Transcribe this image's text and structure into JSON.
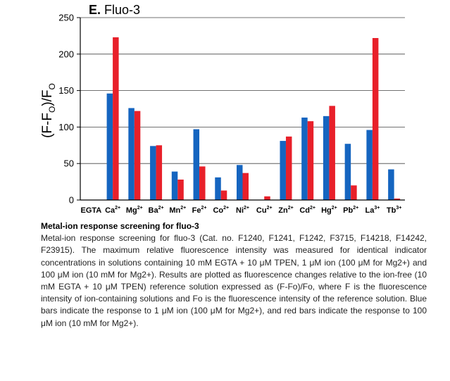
{
  "chart_data": {
    "type": "bar",
    "title_letter": "E.",
    "title_text": "Fluo-3",
    "ylabel_main": "(F-F",
    "ylabel_sub": "O",
    "ylabel_mid": ")/F",
    "ylabel_sub2": "O",
    "ylim": [
      0,
      250
    ],
    "yticks": [
      0,
      50,
      100,
      150,
      200,
      250
    ],
    "grid": true,
    "categories": [
      {
        "base": "EGTA",
        "sup": ""
      },
      {
        "base": "Ca",
        "sup": "2+"
      },
      {
        "base": "Mg",
        "sup": "2+"
      },
      {
        "base": "Ba",
        "sup": "2+"
      },
      {
        "base": "Mn",
        "sup": "2+"
      },
      {
        "base": "Fe",
        "sup": "2+"
      },
      {
        "base": "Co",
        "sup": "2+"
      },
      {
        "base": "Ni",
        "sup": "2+"
      },
      {
        "base": "Cu",
        "sup": "2+"
      },
      {
        "base": "Zn",
        "sup": "2+"
      },
      {
        "base": "Cd",
        "sup": "2+"
      },
      {
        "base": "Hg",
        "sup": "2+"
      },
      {
        "base": "Pb",
        "sup": "2+"
      },
      {
        "base": "La",
        "sup": "3+"
      },
      {
        "base": "Tb",
        "sup": "3+"
      }
    ],
    "series": [
      {
        "color": "#1565c0",
        "values": [
          0,
          146,
          126,
          74,
          39,
          97,
          31,
          48,
          0,
          81,
          113,
          115,
          77,
          96,
          42
        ]
      },
      {
        "color": "#e8202a",
        "values": [
          0,
          223,
          122,
          75,
          28,
          46,
          13,
          37,
          5,
          87,
          108,
          129,
          20,
          222,
          2
        ]
      }
    ]
  },
  "caption": {
    "title": "Metal-ion response screening for fluo-3",
    "body": "Metal-ion response screening for fluo-3 (Cat. no. F1240, F1241, F1242, F3715, F14218, F14242, F23915). The maximum relative fluorescence intensity was measured for identical indicator concentrations in solutions containing 10 mM EGTA + 10 μM TPEN, 1 μM ion (100 μM for Mg2+) and 100 μM ion (10 mM for Mg2+). Results are plotted as fluorescence changes relative to the ion-free (10 mM EGTA + 10 μM TPEN) reference solution expressed as (F-Fo)/Fo, where F is the fluorescence intensity of ion-containing solutions and Fo is the fluorescence intensity of the reference solution. Blue bars indicate the response to 1 μM ion (100 μM for Mg2+), and red bars indicate the response to 100 μM ion (10 mM for Mg2+)."
  }
}
